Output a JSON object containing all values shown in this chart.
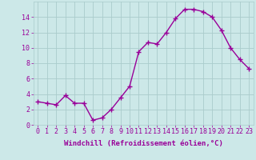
{
  "x": [
    0,
    1,
    2,
    3,
    4,
    5,
    6,
    7,
    8,
    9,
    10,
    11,
    12,
    13,
    14,
    15,
    16,
    17,
    18,
    19,
    20,
    21,
    22,
    23
  ],
  "y": [
    3.0,
    2.8,
    2.6,
    3.8,
    2.8,
    2.8,
    0.6,
    0.9,
    2.0,
    3.5,
    5.0,
    9.5,
    10.7,
    10.5,
    12.0,
    13.8,
    15.0,
    15.0,
    14.7,
    14.0,
    12.3,
    10.0,
    8.5,
    7.3
  ],
  "line_color": "#990099",
  "marker": "+",
  "markersize": 4,
  "linewidth": 1,
  "bg_color": "#cce8e8",
  "grid_color": "#aacccc",
  "xlabel": "Windchill (Refroidissement éolien,°C)",
  "xlabel_color": "#990099",
  "tick_color": "#990099",
  "xlim": [
    -0.5,
    23.5
  ],
  "ylim": [
    0,
    16
  ],
  "yticks": [
    0,
    2,
    4,
    6,
    8,
    10,
    12,
    14
  ],
  "xticks": [
    0,
    1,
    2,
    3,
    4,
    5,
    6,
    7,
    8,
    9,
    10,
    11,
    12,
    13,
    14,
    15,
    16,
    17,
    18,
    19,
    20,
    21,
    22,
    23
  ],
  "xlabel_fontsize": 6.5,
  "tick_fontsize": 6.0
}
